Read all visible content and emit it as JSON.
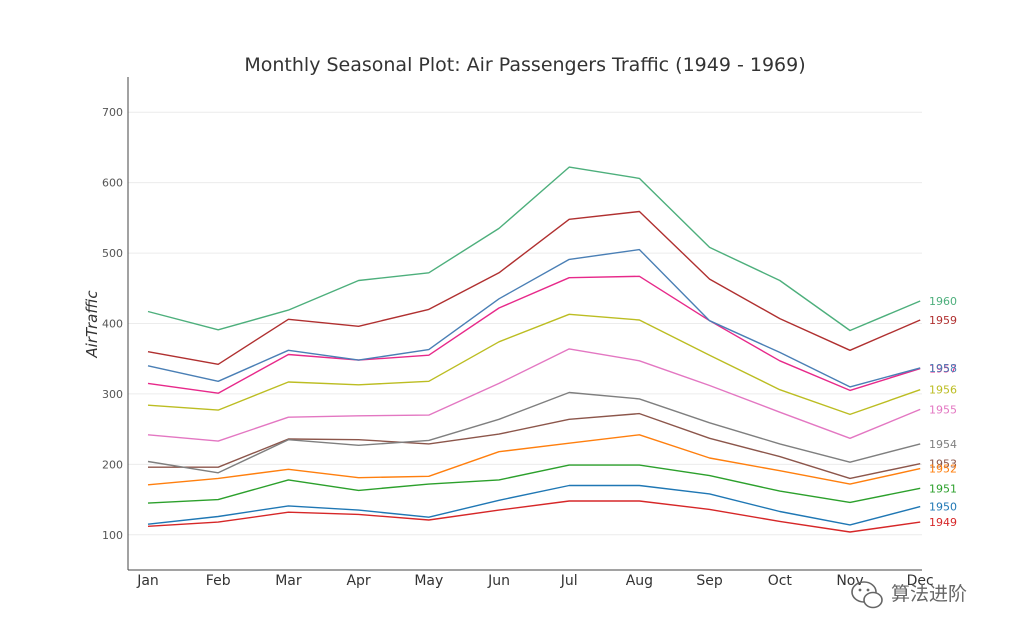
{
  "chart_data": {
    "type": "line",
    "title": "Monthly Seasonal Plot: Air Passengers Traffic (1949 - 1969)",
    "xlabel": "",
    "ylabel": "AirTraffic",
    "ylim": [
      50,
      750
    ],
    "yticks": [
      100,
      200,
      300,
      400,
      500,
      600,
      700
    ],
    "grid": true,
    "categories": [
      "Jan",
      "Feb",
      "Mar",
      "Apr",
      "May",
      "Jun",
      "Jul",
      "Aug",
      "Sep",
      "Oct",
      "Nov",
      "Dec"
    ],
    "series": [
      {
        "name": "1949",
        "color": "#d62728",
        "values": [
          112,
          118,
          132,
          129,
          121,
          135,
          148,
          148,
          136,
          119,
          104,
          118
        ]
      },
      {
        "name": "1950",
        "color": "#1f77b4",
        "values": [
          115,
          126,
          141,
          135,
          125,
          149,
          170,
          170,
          158,
          133,
          114,
          140
        ]
      },
      {
        "name": "1951",
        "color": "#2ca02c",
        "values": [
          145,
          150,
          178,
          163,
          172,
          178,
          199,
          199,
          184,
          162,
          146,
          166
        ]
      },
      {
        "name": "1952",
        "color": "#ff7f0e",
        "values": [
          171,
          180,
          193,
          181,
          183,
          218,
          230,
          242,
          209,
          191,
          172,
          194
        ]
      },
      {
        "name": "1953",
        "color": "#8c564b",
        "values": [
          196,
          196,
          236,
          235,
          229,
          243,
          264,
          272,
          237,
          211,
          180,
          201
        ]
      },
      {
        "name": "1954",
        "color": "#7f7f7f",
        "values": [
          204,
          188,
          235,
          227,
          234,
          264,
          302,
          293,
          259,
          229,
          203,
          229
        ]
      },
      {
        "name": "1955",
        "color": "#e377c2",
        "values": [
          242,
          233,
          267,
          269,
          270,
          315,
          364,
          347,
          312,
          274,
          237,
          278
        ]
      },
      {
        "name": "1956",
        "color": "#bcbd22",
        "values": [
          284,
          277,
          317,
          313,
          318,
          374,
          413,
          405,
          355,
          306,
          271,
          306
        ]
      },
      {
        "name": "1957",
        "color": "#e7298a",
        "values": [
          315,
          301,
          356,
          348,
          355,
          422,
          465,
          467,
          404,
          347,
          305,
          336
        ]
      },
      {
        "name": "1958",
        "color": "#4a7fb5",
        "values": [
          340,
          318,
          362,
          348,
          363,
          435,
          491,
          505,
          404,
          359,
          310,
          337
        ]
      },
      {
        "name": "1959",
        "color": "#b03030",
        "values": [
          360,
          342,
          406,
          396,
          420,
          472,
          548,
          559,
          463,
          407,
          362,
          405
        ]
      },
      {
        "name": "1960",
        "color": "#4daf7c",
        "values": [
          417,
          391,
          419,
          461,
          472,
          535,
          622,
          606,
          508,
          461,
          390,
          432
        ]
      }
    ],
    "end_labels": [
      {
        "text": "1960",
        "color": "#4daf7c",
        "y": 432
      },
      {
        "text": "1959",
        "color": "#b03030",
        "y": 405
      },
      {
        "text": "1957",
        "color": "#e7298a",
        "y": 336
      },
      {
        "text": "1958",
        "color": "#4a7fb5",
        "y": 337
      },
      {
        "text": "1956",
        "color": "#bcbd22",
        "y": 306
      },
      {
        "text": "1955",
        "color": "#e377c2",
        "y": 278
      },
      {
        "text": "1954",
        "color": "#7f7f7f",
        "y": 229
      },
      {
        "text": "1953",
        "color": "#8c564b",
        "y": 201
      },
      {
        "text": "1952",
        "color": "#ff7f0e",
        "y": 194
      },
      {
        "text": "1951",
        "color": "#2ca02c",
        "y": 166
      },
      {
        "text": "1950",
        "color": "#1f77b4",
        "y": 140
      },
      {
        "text": "1949",
        "color": "#d62728",
        "y": 118
      }
    ]
  },
  "watermark": {
    "text": "算法进阶",
    "icon": "wechat-icon"
  }
}
